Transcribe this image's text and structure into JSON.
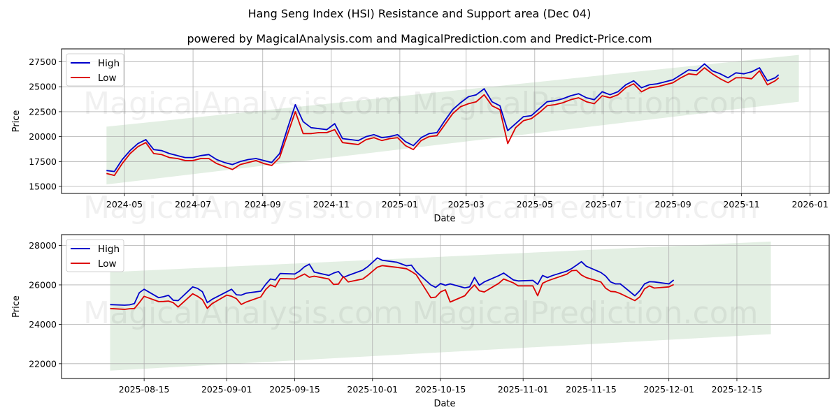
{
  "header": {
    "title": "Hang Seng Index (HSI) Resistance and Support area (Dec 04)",
    "subtitle": "powered by MagicalAnalysis.com and MagicalPrediction.com and Predict-Price.com"
  },
  "watermarks": [
    "MagicalAnalysis.com",
    "MagicalPrediction.com"
  ],
  "colors": {
    "high": "#0000cc",
    "low": "#dd0000",
    "band": "#e3efe3",
    "grid": "#b0b0b0"
  },
  "chart_data": [
    {
      "type": "line",
      "title": "Hang Seng Index (HSI) Resistance and Support area (Dec 04)",
      "subtitle": "powered by MagicalAnalysis.com and MagicalPrediction.com and Predict-Price.com",
      "xlabel": "Date",
      "ylabel": "Price",
      "ylim": [
        14300,
        28800
      ],
      "xlim": [
        "2024-03-06",
        "2026-01-18"
      ],
      "grid": true,
      "legend": {
        "position": "upper left",
        "entries": [
          "High",
          "Low"
        ]
      },
      "xticks": [
        "2024-05",
        "2024-07",
        "2024-09",
        "2024-11",
        "2025-01",
        "2025-03",
        "2025-05",
        "2025-07",
        "2025-09",
        "2025-11",
        "2026-01"
      ],
      "yticks": [
        15000,
        17500,
        20000,
        22500,
        25000,
        27500
      ],
      "band": {
        "label": "Resistance and Support area",
        "start": "2024-04-15",
        "end": "2025-12-22",
        "upper_start": 21000,
        "upper_end": 28200,
        "lower_start": 15200,
        "lower_end": 23500
      },
      "x": [
        "2024-04-15",
        "2024-04-22",
        "2024-04-29",
        "2024-05-06",
        "2024-05-13",
        "2024-05-20",
        "2024-05-27",
        "2024-06-03",
        "2024-06-10",
        "2024-06-17",
        "2024-06-24",
        "2024-07-01",
        "2024-07-08",
        "2024-07-15",
        "2024-07-22",
        "2024-07-29",
        "2024-08-05",
        "2024-08-12",
        "2024-08-19",
        "2024-08-26",
        "2024-09-02",
        "2024-09-09",
        "2024-09-16",
        "2024-09-23",
        "2024-09-30",
        "2024-10-07",
        "2024-10-14",
        "2024-10-21",
        "2024-10-28",
        "2024-11-04",
        "2024-11-11",
        "2024-11-18",
        "2024-11-25",
        "2024-12-02",
        "2024-12-09",
        "2024-12-16",
        "2024-12-23",
        "2024-12-30",
        "2025-01-06",
        "2025-01-13",
        "2025-01-20",
        "2025-01-27",
        "2025-02-03",
        "2025-02-10",
        "2025-02-17",
        "2025-02-24",
        "2025-03-03",
        "2025-03-10",
        "2025-03-17",
        "2025-03-24",
        "2025-03-31",
        "2025-04-07",
        "2025-04-14",
        "2025-04-21",
        "2025-04-28",
        "2025-05-05",
        "2025-05-12",
        "2025-05-19",
        "2025-05-26",
        "2025-06-02",
        "2025-06-09",
        "2025-06-16",
        "2025-06-23",
        "2025-06-30",
        "2025-07-07",
        "2025-07-14",
        "2025-07-21",
        "2025-07-28",
        "2025-08-04",
        "2025-08-11",
        "2025-08-18",
        "2025-08-25",
        "2025-09-01",
        "2025-09-08",
        "2025-09-15",
        "2025-09-22",
        "2025-09-29",
        "2025-10-06",
        "2025-10-13",
        "2025-10-20",
        "2025-10-27",
        "2025-11-03",
        "2025-11-10",
        "2025-11-17",
        "2025-11-24",
        "2025-12-01",
        "2025-12-04"
      ],
      "series": [
        {
          "name": "High",
          "color": "#0000cc",
          "values": [
            16600,
            16500,
            17700,
            18600,
            19300,
            19700,
            18700,
            18600,
            18300,
            18100,
            17900,
            17900,
            18100,
            18200,
            17700,
            17400,
            17200,
            17500,
            17700,
            17800,
            17600,
            17400,
            18300,
            20800,
            23200,
            21500,
            20900,
            20800,
            20700,
            21300,
            19800,
            19700,
            19600,
            20000,
            20200,
            19900,
            20000,
            20200,
            19500,
            19100,
            19900,
            20300,
            20400,
            21600,
            22700,
            23400,
            24000,
            24200,
            24800,
            23500,
            23100,
            20600,
            21300,
            22000,
            22100,
            22800,
            23500,
            23600,
            23800,
            24100,
            24300,
            23900,
            23700,
            24500,
            24200,
            24500,
            25200,
            25600,
            24900,
            25200,
            25300,
            25500,
            25700,
            26200,
            26700,
            26600,
            27300,
            26600,
            26300,
            25900,
            26400,
            26300,
            26500,
            26900,
            25600,
            25900,
            26200
          ]
        },
        {
          "name": "Low",
          "color": "#dd0000",
          "values": [
            16300,
            16100,
            17300,
            18300,
            19000,
            19400,
            18300,
            18200,
            17900,
            17800,
            17600,
            17600,
            17800,
            17800,
            17300,
            17000,
            16700,
            17200,
            17400,
            17600,
            17300,
            17100,
            17900,
            20200,
            22500,
            20300,
            20300,
            20400,
            20400,
            20700,
            19400,
            19300,
            19200,
            19700,
            19900,
            19600,
            19800,
            19900,
            19100,
            18700,
            19600,
            20000,
            20100,
            21200,
            22300,
            23000,
            23300,
            23500,
            24200,
            23100,
            22700,
            19300,
            20900,
            21600,
            21800,
            22400,
            23100,
            23200,
            23400,
            23700,
            23900,
            23500,
            23300,
            24100,
            23900,
            24200,
            24900,
            25300,
            24500,
            24900,
            25000,
            25200,
            25400,
            25900,
            26300,
            26200,
            26900,
            26300,
            25800,
            25400,
            25900,
            25900,
            25800,
            26600,
            25200,
            25600,
            25900
          ]
        }
      ]
    },
    {
      "type": "line",
      "xlabel": "Date",
      "ylabel": "Price",
      "ylim": [
        21250,
        28550
      ],
      "xlim": [
        "2025-07-29",
        "2026-01-03"
      ],
      "grid": true,
      "legend": {
        "position": "upper left",
        "entries": [
          "High",
          "Low"
        ]
      },
      "xticks": [
        "2025-08-15",
        "2025-09-01",
        "2025-09-15",
        "2025-10-01",
        "2025-10-15",
        "2025-11-01",
        "2025-11-15",
        "2025-12-01",
        "2025-12-15"
      ],
      "yticks": [
        22000,
        24000,
        26000,
        28000
      ],
      "band": {
        "label": "Resistance and Support area",
        "start": "2025-08-08",
        "end": "2025-12-22",
        "upper_start": 26650,
        "upper_end": 28200,
        "lower_start": 21650,
        "lower_end": 23500
      },
      "x": [
        "2025-08-08",
        "2025-08-11",
        "2025-08-12",
        "2025-08-13",
        "2025-08-14",
        "2025-08-15",
        "2025-08-18",
        "2025-08-19",
        "2025-08-20",
        "2025-08-21",
        "2025-08-22",
        "2025-08-25",
        "2025-08-26",
        "2025-08-27",
        "2025-08-28",
        "2025-08-29",
        "2025-09-01",
        "2025-09-02",
        "2025-09-03",
        "2025-09-04",
        "2025-09-05",
        "2025-09-08",
        "2025-09-09",
        "2025-09-10",
        "2025-09-11",
        "2025-09-12",
        "2025-09-15",
        "2025-09-16",
        "2025-09-17",
        "2025-09-18",
        "2025-09-19",
        "2025-09-22",
        "2025-09-23",
        "2025-09-24",
        "2025-09-25",
        "2025-09-26",
        "2025-09-29",
        "2025-09-30",
        "2025-10-02",
        "2025-10-03",
        "2025-10-06",
        "2025-10-08",
        "2025-10-09",
        "2025-10-10",
        "2025-10-13",
        "2025-10-14",
        "2025-10-15",
        "2025-10-16",
        "2025-10-17",
        "2025-10-20",
        "2025-10-21",
        "2025-10-22",
        "2025-10-23",
        "2025-10-24",
        "2025-10-27",
        "2025-10-28",
        "2025-10-30",
        "2025-10-31",
        "2025-11-03",
        "2025-11-04",
        "2025-11-05",
        "2025-11-06",
        "2025-11-07",
        "2025-11-10",
        "2025-11-11",
        "2025-11-12",
        "2025-11-13",
        "2025-11-14",
        "2025-11-17",
        "2025-11-18",
        "2025-11-19",
        "2025-11-20",
        "2025-11-21",
        "2025-11-24",
        "2025-11-25",
        "2025-11-26",
        "2025-11-27",
        "2025-11-28",
        "2025-12-01",
        "2025-12-02"
      ],
      "series": [
        {
          "name": "High",
          "color": "#0000cc",
          "values": [
            25000,
            24970,
            24990,
            25050,
            25600,
            25780,
            25350,
            25400,
            25470,
            25220,
            25200,
            25900,
            25820,
            25650,
            25100,
            25270,
            25650,
            25780,
            25500,
            25480,
            25580,
            25680,
            26020,
            26300,
            26250,
            26580,
            26550,
            26700,
            26920,
            27050,
            26650,
            26480,
            26600,
            26680,
            26380,
            26480,
            26750,
            26920,
            27370,
            27250,
            27150,
            26970,
            27000,
            26670,
            26000,
            25870,
            26070,
            25980,
            26050,
            25850,
            25900,
            26380,
            25980,
            26150,
            26470,
            26600,
            26250,
            26200,
            26230,
            26030,
            26480,
            26370,
            26470,
            26700,
            26830,
            27000,
            27180,
            26950,
            26630,
            26450,
            26150,
            26050,
            26050,
            25450,
            25700,
            26050,
            26160,
            26150,
            26050,
            26250
          ]
        },
        {
          "name": "Low",
          "color": "#dd0000",
          "values": [
            24800,
            24760,
            24790,
            24800,
            25100,
            25420,
            25150,
            25160,
            25180,
            25100,
            24880,
            25550,
            25420,
            25250,
            24810,
            25050,
            25480,
            25420,
            25300,
            25010,
            25130,
            25390,
            25760,
            26000,
            25900,
            26320,
            26300,
            26430,
            26550,
            26390,
            26440,
            26300,
            26020,
            26040,
            26420,
            26150,
            26300,
            26480,
            26900,
            26980,
            26890,
            26820,
            26680,
            26520,
            25350,
            25380,
            25640,
            25750,
            25130,
            25450,
            25750,
            26000,
            25700,
            25640,
            26080,
            26300,
            26100,
            25950,
            25950,
            25450,
            26080,
            26200,
            26290,
            26540,
            26720,
            26740,
            26500,
            26370,
            26150,
            25830,
            25670,
            25650,
            25560,
            25200,
            25390,
            25800,
            25950,
            25840,
            25900,
            26020
          ]
        }
      ]
    }
  ]
}
